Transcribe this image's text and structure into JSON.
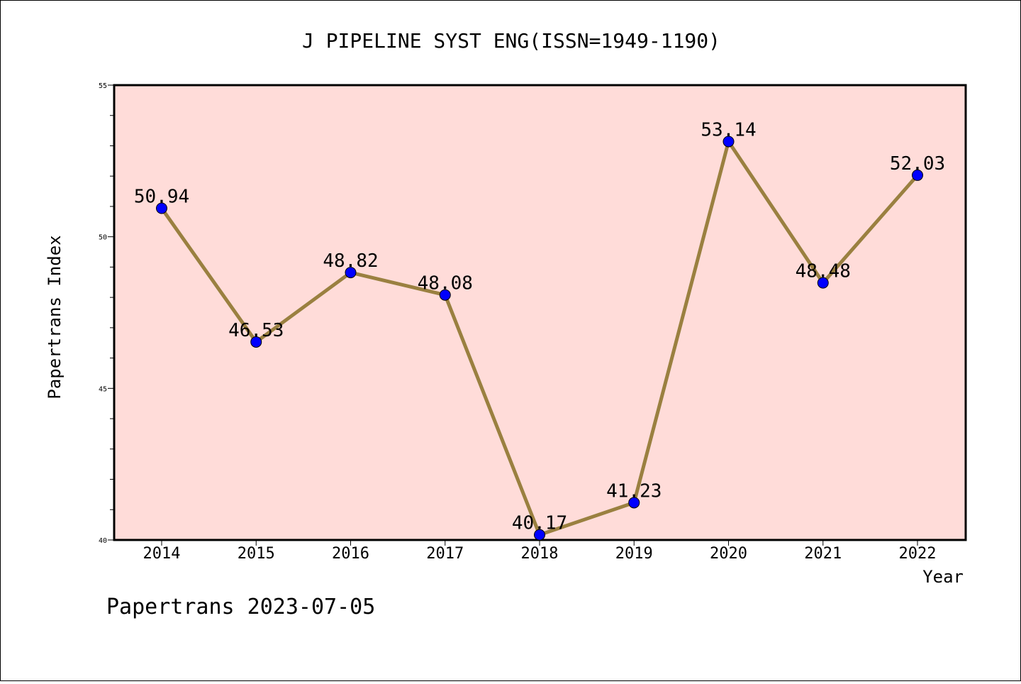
{
  "chart_data": {
    "type": "line",
    "title": "J PIPELINE SYST ENG(ISSN=1949-1190)",
    "xlabel": "Year",
    "ylabel": "Papertrans Index",
    "categories": [
      "2014",
      "2015",
      "2016",
      "2017",
      "2018",
      "2019",
      "2020",
      "2021",
      "2022"
    ],
    "series": [
      {
        "values": [
          50.94,
          46.53,
          48.82,
          48.08,
          40.17,
          41.23,
          53.14,
          48.48,
          52.03
        ],
        "labels": [
          "50.94",
          "46.53",
          "48.82",
          "48.08",
          "40.17",
          "41.23",
          "53.14",
          "48.48",
          "52.03"
        ]
      }
    ],
    "ylim": [
      40,
      55
    ],
    "yticks": [
      "40",
      "45",
      "50",
      "55"
    ],
    "grid": false,
    "colors": {
      "plot_background": "#ffdcd9",
      "line": "#9a8040",
      "marker": "#0000ff"
    }
  },
  "footer": {
    "text": "Papertrans 2023-07-05"
  }
}
